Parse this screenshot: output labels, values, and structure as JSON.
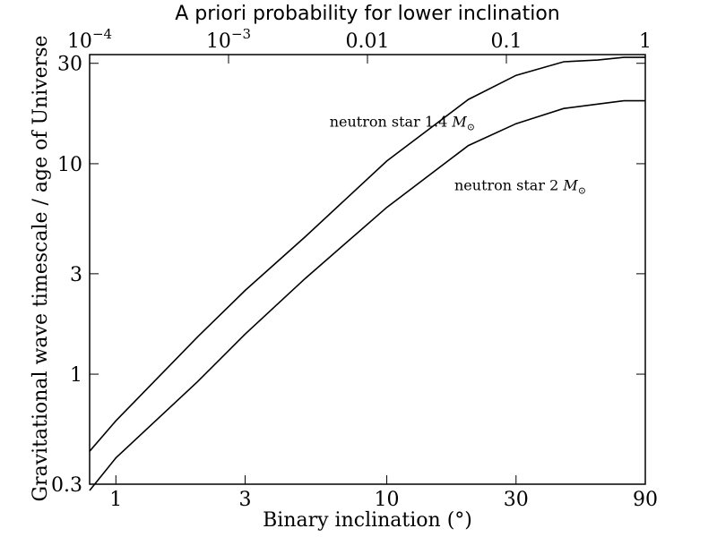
{
  "chart_data": {
    "type": "line",
    "title": "",
    "xlabel": "Binary inclination (°)",
    "ylabel": "Gravitational wave timescale / age of Universe",
    "top_xlabel": "A priori probability for lower inclination",
    "x_scale": "log",
    "y_scale": "log",
    "xlim": [
      0.8,
      90
    ],
    "ylim": [
      0.3,
      33
    ],
    "x_ticks": [
      {
        "value": 1,
        "label": "1"
      },
      {
        "value": 3,
        "label": "3"
      },
      {
        "value": 10,
        "label": "10"
      },
      {
        "value": 30,
        "label": "30"
      },
      {
        "value": 90,
        "label": "90"
      }
    ],
    "y_ticks": [
      {
        "value": 0.3,
        "label": "0.3"
      },
      {
        "value": 1,
        "label": "1"
      },
      {
        "value": 3,
        "label": "3"
      },
      {
        "value": 10,
        "label": "10"
      },
      {
        "value": 30,
        "label": "30"
      }
    ],
    "top_ticks": [
      {
        "value": 0.0001,
        "label_base": "10",
        "label_exp": "−4"
      },
      {
        "value": 0.001,
        "label_base": "10",
        "label_exp": "−3"
      },
      {
        "value": 0.01,
        "label_base": "0.01",
        "label_exp": ""
      },
      {
        "value": 0.1,
        "label_base": "0.1",
        "label_exp": ""
      },
      {
        "value": 1,
        "label_base": "1",
        "label_exp": ""
      }
    ],
    "grid": false,
    "series": [
      {
        "name": "neutron star 1.4 M⊙",
        "x": [
          0.8,
          1,
          2,
          3,
          5,
          10,
          20,
          30,
          45,
          60,
          75,
          90
        ],
        "y": [
          0.43,
          0.6,
          1.5,
          2.5,
          4.5,
          10.3,
          20.2,
          26.3,
          30.5,
          31.1,
          32.0,
          32.0
        ]
      },
      {
        "name": "neutron star 2 M⊙",
        "x": [
          0.8,
          1,
          2,
          3,
          5,
          10,
          20,
          30,
          45,
          60,
          75,
          90
        ],
        "y": [
          0.28,
          0.4,
          0.92,
          1.55,
          2.85,
          6.2,
          12.2,
          15.5,
          18.3,
          19.2,
          19.9,
          19.9
        ]
      }
    ],
    "annotations": [
      {
        "name": "label-1-4",
        "text": "neutron star 1.4",
        "symbol_text": "M",
        "sun": "⊙",
        "x": 9,
        "y": 15
      },
      {
        "name": "label-2",
        "text": "neutron star 2",
        "symbol_text": "M",
        "sun": "⊙",
        "x": 26,
        "y": 7.5
      }
    ]
  }
}
